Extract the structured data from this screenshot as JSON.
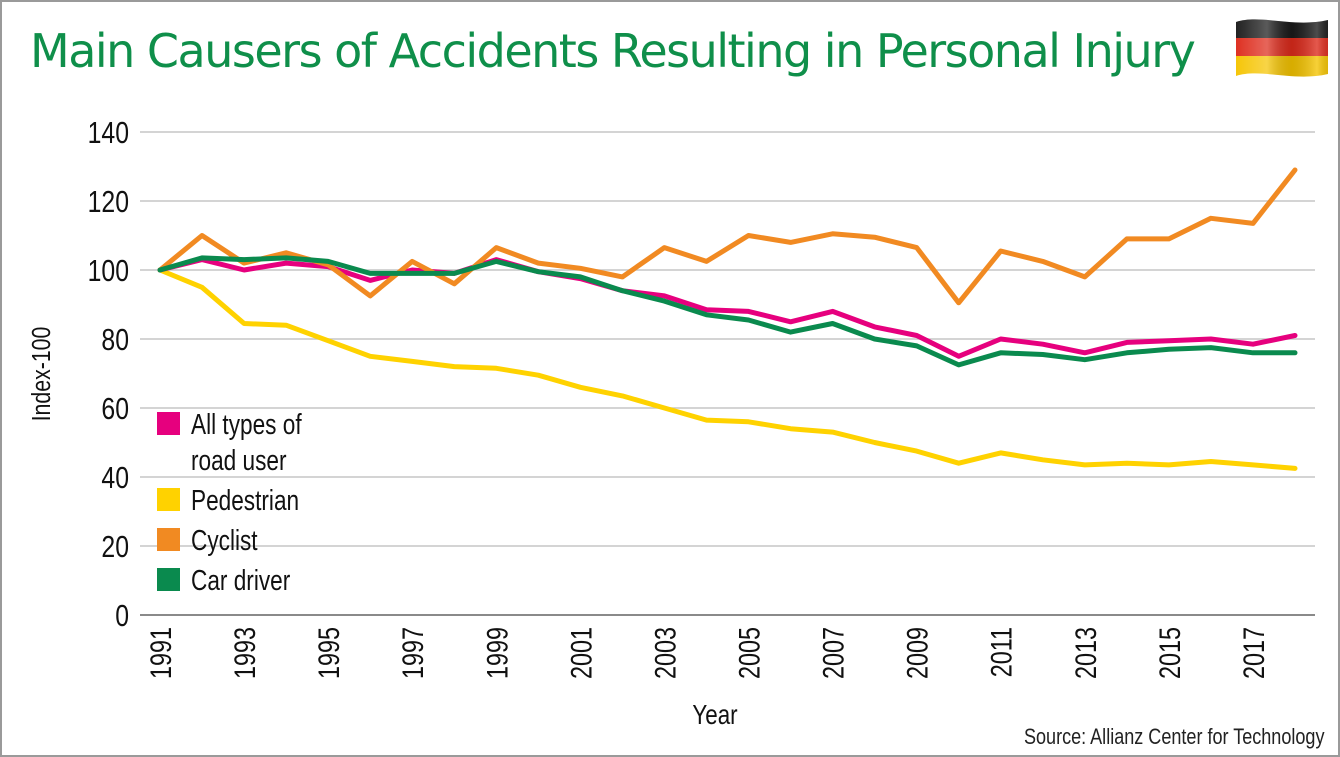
{
  "title": "Main Causers of Accidents Resulting in Personal Injury",
  "source": "Source: Allianz Center for Technology",
  "flag": {
    "name": "germany-flag",
    "colors": [
      "#1a1a1a",
      "#dd2a1b",
      "#f5c400"
    ]
  },
  "chart_data": {
    "type": "line",
    "title": "Main Causers of Accidents Resulting in Personal Injury",
    "xlabel": "Year",
    "ylabel": "Index-100",
    "ylim": [
      0,
      140
    ],
    "yticks": [
      0,
      20,
      40,
      60,
      80,
      100,
      120,
      140
    ],
    "xlim": [
      1991,
      2018
    ],
    "xticks": [
      1991,
      1993,
      1995,
      1997,
      1999,
      2001,
      2003,
      2005,
      2007,
      2009,
      2011,
      2013,
      2015,
      2017
    ],
    "grid": true,
    "legend_position": "left-middle",
    "x": [
      1991,
      1992,
      1993,
      1994,
      1995,
      1996,
      1997,
      1998,
      1999,
      2000,
      2001,
      2002,
      2003,
      2004,
      2005,
      2006,
      2007,
      2008,
      2009,
      2010,
      2011,
      2012,
      2013,
      2014,
      2015,
      2016,
      2017,
      2018
    ],
    "series": [
      {
        "name": "All types of road user",
        "legend_lines": [
          "All types of",
          "road user"
        ],
        "color": "#e6007e",
        "values": [
          100,
          103,
          100,
          102,
          101,
          97,
          100,
          99,
          103,
          99.5,
          97.5,
          94,
          92.5,
          88.5,
          88,
          85,
          88,
          83.5,
          81,
          75,
          80,
          78.5,
          76,
          79,
          79.5,
          80,
          78.5,
          81
        ]
      },
      {
        "name": "Pedestrian",
        "legend_lines": [
          "Pedestrian"
        ],
        "color": "#ffd200",
        "values": [
          100,
          95,
          84.5,
          84,
          79.5,
          75,
          73.5,
          72,
          71.5,
          69.5,
          66,
          63.5,
          60,
          56.5,
          56,
          54,
          53,
          50,
          47.5,
          44,
          47,
          45,
          43.5,
          44,
          43.5,
          44.5,
          43.5,
          42.5
        ]
      },
      {
        "name": "Cyclist",
        "legend_lines": [
          "Cyclist"
        ],
        "color": "#f18a22",
        "values": [
          100,
          110,
          102,
          105,
          101.5,
          92.5,
          102.5,
          96,
          106.5,
          102,
          100.5,
          98,
          106.5,
          102.5,
          110,
          108,
          110.5,
          109.5,
          106.5,
          90.5,
          105.5,
          102.5,
          98,
          109,
          109,
          115,
          113.5,
          129
        ]
      },
      {
        "name": "Car driver",
        "legend_lines": [
          "Car driver"
        ],
        "color": "#0a8a4e",
        "values": [
          100,
          103.5,
          103,
          103.5,
          102.5,
          99,
          99,
          99,
          102.5,
          99.5,
          98,
          94,
          91,
          87,
          85.5,
          82,
          84.5,
          80,
          78,
          72.5,
          76,
          75.5,
          74,
          76,
          77,
          77.5,
          76,
          76
        ]
      }
    ]
  }
}
